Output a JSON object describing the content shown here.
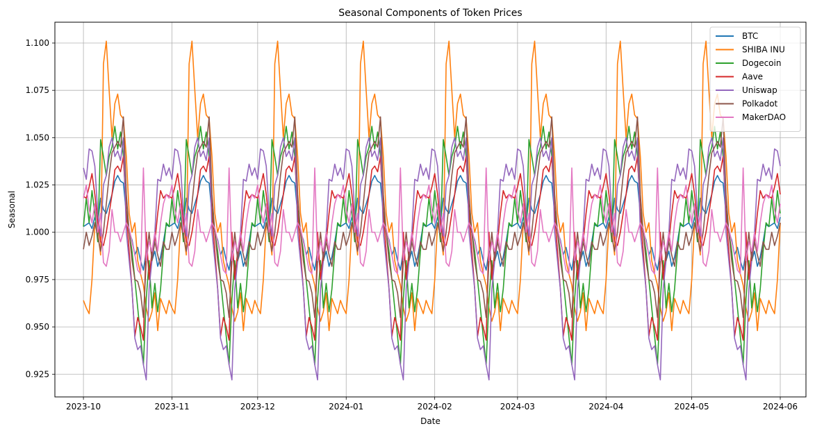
{
  "chart_data": {
    "type": "line",
    "title": "Seasonal Components of Token Prices",
    "xlabel": "Date",
    "ylabel": "Seasonal",
    "x_start": "2023-10-01",
    "x_end": "2024-06-01",
    "period_days": 30,
    "xlim": [
      "2023-09-21",
      "2024-06-10"
    ],
    "ylim": [
      0.913,
      1.111
    ],
    "grid": true,
    "legend_position": "top-right",
    "x_ticks": [
      "2023-10",
      "2023-11",
      "2023-12",
      "2024-01",
      "2024-02",
      "2024-03",
      "2024-04",
      "2024-05",
      "2024-06"
    ],
    "x_tick_dates": [
      "2023-10-01",
      "2023-11-01",
      "2023-12-01",
      "2024-01-01",
      "2024-02-01",
      "2024-03-01",
      "2024-04-01",
      "2024-05-01",
      "2024-06-01"
    ],
    "y_ticks": [
      "0.925",
      "0.950",
      "0.975",
      "1.000",
      "1.025",
      "1.050",
      "1.075",
      "1.100"
    ],
    "y_tick_values": [
      0.925,
      0.95,
      0.975,
      1.0,
      1.025,
      1.05,
      1.075,
      1.1
    ],
    "note": "Each series repeats its 30-day seasonal pattern (values listed for one period, day 0 = 2023-10-01).",
    "series": [
      {
        "name": "BTC",
        "color": "#1f77b4",
        "pattern": [
          1.003,
          1.004,
          1.005,
          1.002,
          1.008,
          1.005,
          1.018,
          1.012,
          1.01,
          1.015,
          1.02,
          1.027,
          1.03,
          1.027,
          1.026,
          1.01,
          1.0,
          0.996,
          0.988,
          0.992,
          0.985,
          0.98,
          0.99,
          0.98,
          0.985,
          0.99,
          0.982,
          0.987,
          0.995,
          1.004
        ]
      },
      {
        "name": "SHIBA INU",
        "color": "#ff7f0e",
        "pattern": [
          0.964,
          0.96,
          0.957,
          0.975,
          1.005,
          1.0,
          0.988,
          1.089,
          1.101,
          1.075,
          1.05,
          1.068,
          1.073,
          1.062,
          1.06,
          1.04,
          1.01,
          1.0,
          1.005,
          0.985,
          0.978,
          0.972,
          0.96,
          0.953,
          0.958,
          0.968,
          0.948,
          0.965,
          0.961,
          0.957
        ]
      },
      {
        "name": "Dogecoin",
        "color": "#2ca02c",
        "pattern": [
          1.003,
          1.018,
          1.005,
          1.022,
          1.01,
          0.995,
          1.049,
          1.04,
          1.03,
          1.04,
          1.045,
          1.056,
          1.044,
          1.053,
          1.04,
          1.012,
          1.0,
          0.99,
          0.975,
          0.96,
          0.945,
          0.93,
          0.965,
          0.985,
          0.96,
          0.973,
          0.958,
          0.97,
          0.99,
          1.005
        ]
      },
      {
        "name": "Aave",
        "color": "#d62728",
        "pattern": [
          1.019,
          1.018,
          1.024,
          1.031,
          1.02,
          1.005,
          0.995,
          0.993,
          1.0,
          1.01,
          1.02,
          1.033,
          1.035,
          1.032,
          1.04,
          1.01,
          0.99,
          0.97,
          0.945,
          0.955,
          0.95,
          0.943,
          1.0,
          0.975,
          0.99,
          0.995,
          1.01,
          1.022,
          1.018,
          1.02
        ]
      },
      {
        "name": "Uniswap",
        "color": "#9467bd",
        "pattern": [
          1.034,
          1.028,
          1.044,
          1.043,
          1.035,
          1.01,
          0.998,
          1.025,
          1.03,
          1.045,
          1.05,
          1.04,
          1.043,
          1.038,
          1.05,
          1.0,
          0.985,
          0.97,
          0.944,
          0.938,
          0.94,
          0.93,
          0.922,
          0.97,
          0.985,
          1.0,
          1.028,
          1.027,
          1.036,
          1.03
        ]
      },
      {
        "name": "Polkadot",
        "color": "#8c564b",
        "pattern": [
          0.991,
          1.0,
          0.993,
          0.998,
          1.005,
          0.998,
          0.99,
          1.0,
          1.015,
          1.03,
          1.042,
          1.045,
          1.048,
          1.045,
          1.061,
          1.02,
          1.0,
          0.985,
          0.975,
          0.974,
          0.968,
          0.955,
          0.985,
          1.0,
          0.985,
          0.995,
          0.988,
          0.982,
          0.995,
          0.991
        ]
      },
      {
        "name": "MakerDAO",
        "color": "#e377c2",
        "pattern": [
          1.018,
          1.025,
          1.012,
          1.005,
          1.015,
          1.0,
          1.01,
          0.984,
          0.982,
          0.99,
          1.012,
          1.0,
          1.0,
          0.995,
          1.0,
          1.005,
          1.002,
          0.995,
          0.988,
          0.98,
          0.978,
          1.034,
          0.985,
          0.995,
          0.99,
          1.0,
          0.99,
          1.005,
          1.015,
          1.02
        ]
      }
    ]
  }
}
